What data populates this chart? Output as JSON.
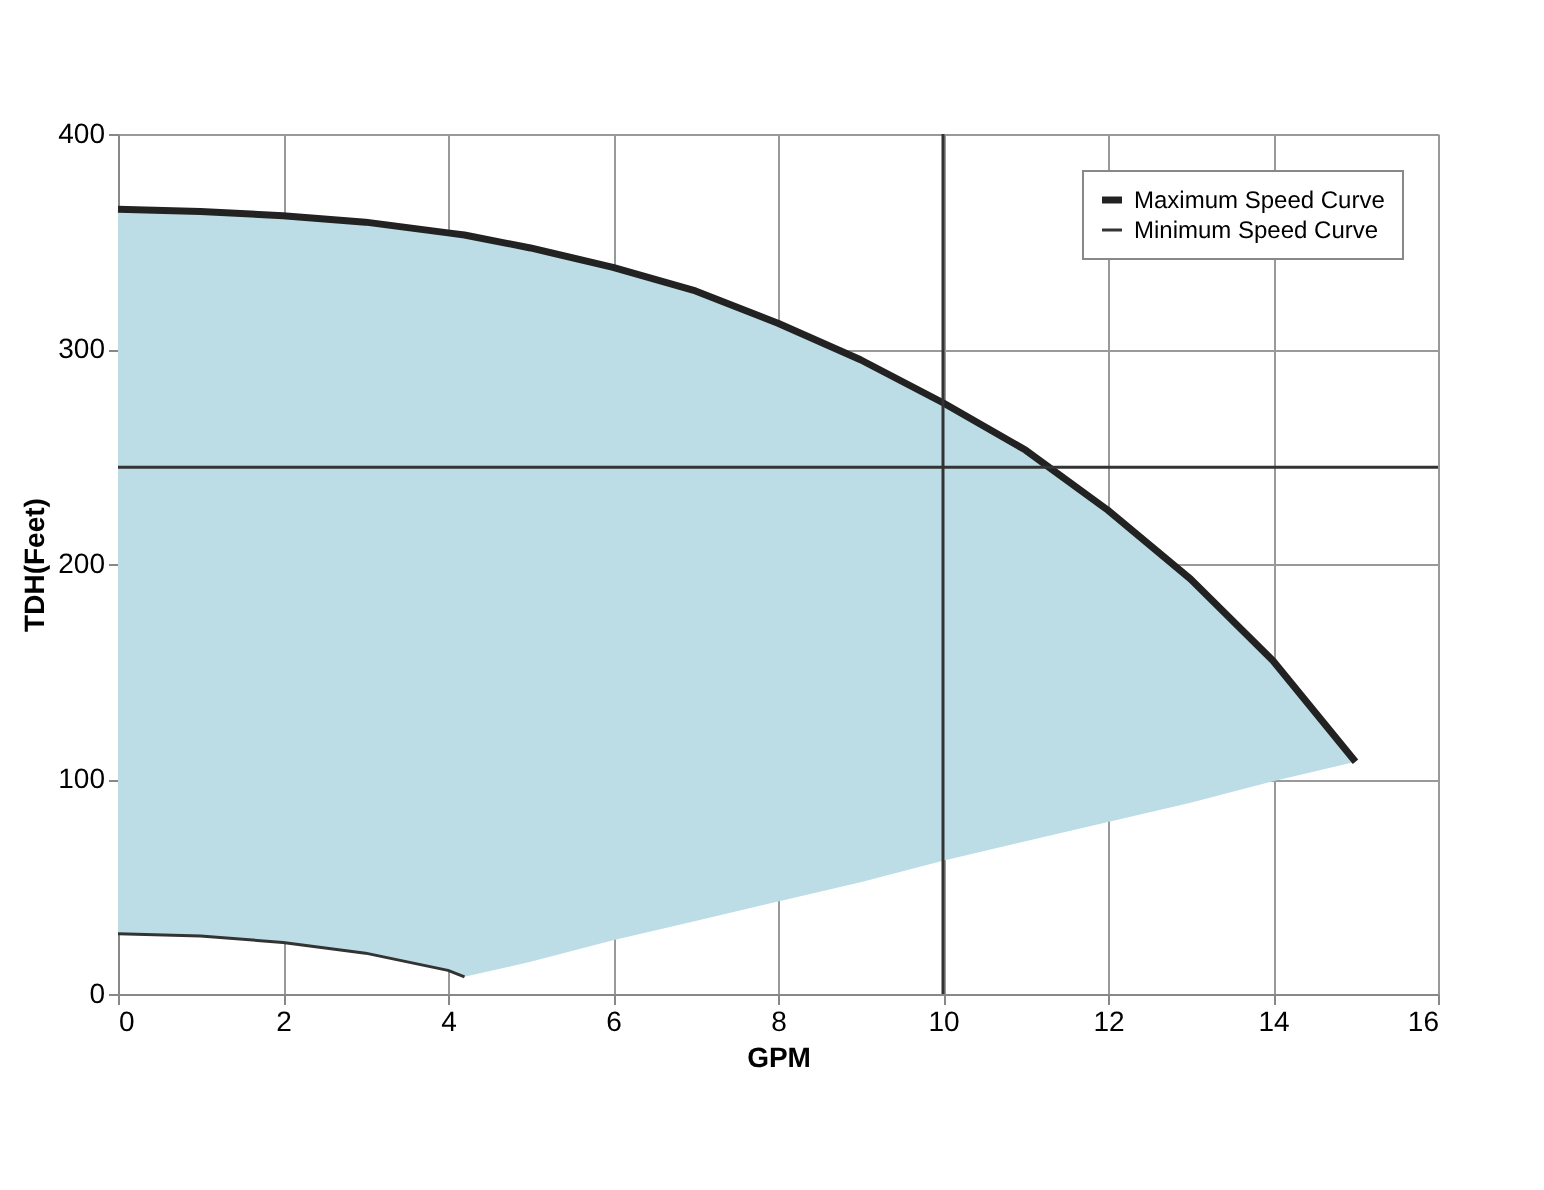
{
  "chart_data": {
    "type": "line",
    "xlabel": "GPM",
    "ylabel": "TDH(Feet)",
    "xlim": [
      0,
      16
    ],
    "xticks": [
      0,
      2,
      4,
      6,
      8,
      10,
      12,
      14,
      16
    ],
    "ylim": [
      0,
      400
    ],
    "yticks": [
      0,
      100,
      200,
      300,
      400
    ],
    "grid": true,
    "legend": "top right",
    "marker": "none",
    "line_style": "solid",
    "series": [
      {
        "name": "Maximum Speed Curve",
        "color": "#222222",
        "x": [
          0,
          1,
          2,
          3,
          4,
          4.2,
          5,
          6,
          7,
          8,
          9,
          10,
          11,
          12,
          13,
          14,
          15
        ],
        "values": [
          365,
          364,
          362,
          359,
          354,
          353,
          347,
          338,
          327,
          312,
          295,
          275,
          253,
          225,
          193,
          155,
          108
        ],
        "upper": [
          365,
          364,
          362,
          359,
          354,
          353,
          347,
          338,
          327,
          312,
          295,
          275,
          253,
          225,
          193,
          155,
          108
        ],
        "lower": [
          28,
          27,
          24,
          19,
          11,
          8,
          15,
          25,
          34,
          43,
          52,
          62,
          71,
          80,
          89,
          99,
          108
        ]
      },
      {
        "name": "Minimum Speed Curve",
        "color": "#333333",
        "x": [
          0,
          1,
          2,
          3,
          4,
          4.2
        ],
        "values": [
          28,
          27,
          24,
          19,
          11,
          8
        ]
      }
    ],
    "ref_lines": [
      {
        "axis": "y",
        "value": 245,
        "color": "#333333"
      },
      {
        "axis": "x",
        "value": 10,
        "color": "#333333"
      }
    ]
  }
}
